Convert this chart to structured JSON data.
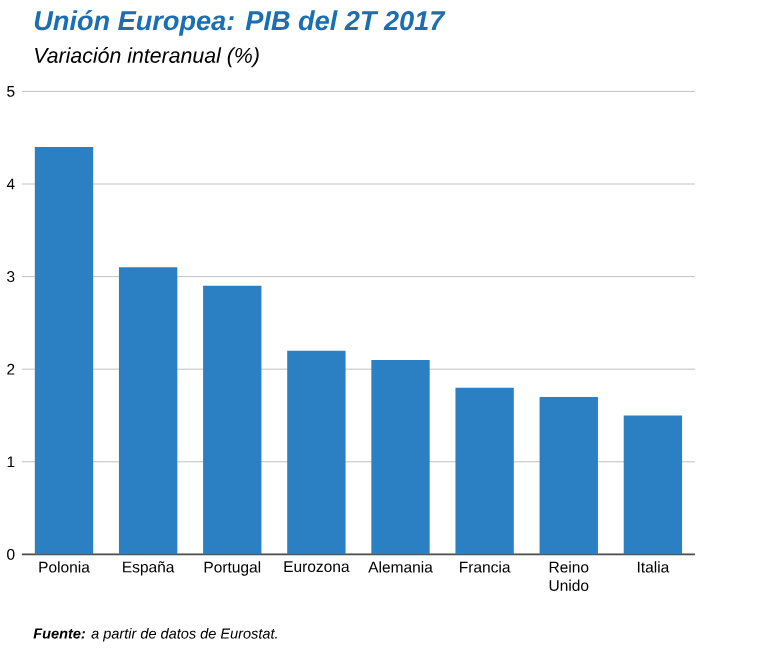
{
  "chart_data": {
    "type": "bar",
    "title": "Unión Europea: PIB del 2T 2017",
    "subtitle": "Variación interanual (%)",
    "categories": [
      "Polonia",
      "España",
      "Portugal",
      "Eurozona",
      "Alemania",
      "Francia",
      "Reino Unido",
      "Italia"
    ],
    "values": [
      4.4,
      3.1,
      2.9,
      2.2,
      2.1,
      1.8,
      1.7,
      1.5
    ],
    "color": "#2a80c3",
    "ylim": [
      0,
      5
    ],
    "yticks": [
      0,
      1,
      2,
      3,
      4,
      5
    ],
    "grid": "y",
    "annotations": [
      "**Fuente:** a partir de datos de Eurostat."
    ]
  }
}
